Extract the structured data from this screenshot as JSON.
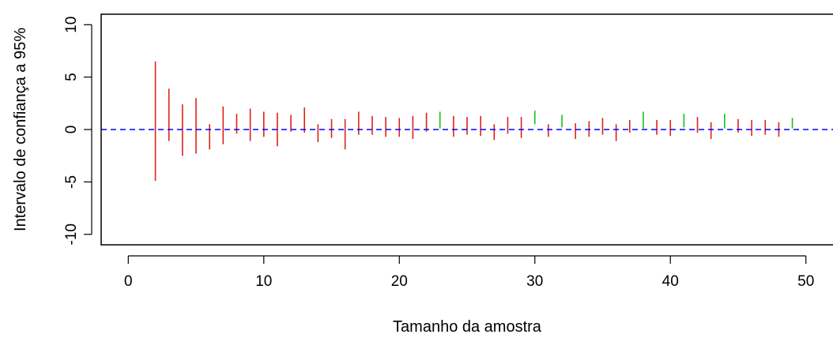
{
  "chart_data": {
    "type": "errorbar",
    "title": "",
    "xlabel": "Tamanho da amostra",
    "ylabel": "Intervalo de confiança a 95%",
    "xlim": [
      -2,
      52
    ],
    "ylim": [
      -11,
      11
    ],
    "xticks": [
      0,
      10,
      20,
      30,
      40,
      50
    ],
    "yticks": [
      -10,
      -5,
      0,
      5,
      10
    ],
    "reference_line": {
      "y": 0,
      "style": "dashed",
      "color": "#0000ff"
    },
    "colors": {
      "contains_zero": "#e0201b",
      "excludes_zero": "#19c019"
    },
    "intervals": [
      {
        "n": 2,
        "lower": -4.9,
        "upper": 6.5
      },
      {
        "n": 3,
        "lower": -1.1,
        "upper": 3.9
      },
      {
        "n": 4,
        "lower": -2.5,
        "upper": 2.4
      },
      {
        "n": 5,
        "lower": -2.3,
        "upper": 3.0
      },
      {
        "n": 6,
        "lower": -1.9,
        "upper": 0.5
      },
      {
        "n": 7,
        "lower": -1.4,
        "upper": 2.2
      },
      {
        "n": 8,
        "lower": -0.4,
        "upper": 1.5
      },
      {
        "n": 9,
        "lower": -1.1,
        "upper": 2.0
      },
      {
        "n": 10,
        "lower": -0.7,
        "upper": 1.7
      },
      {
        "n": 11,
        "lower": -1.6,
        "upper": 1.6
      },
      {
        "n": 12,
        "lower": -0.2,
        "upper": 1.4
      },
      {
        "n": 13,
        "lower": -0.3,
        "upper": 2.1
      },
      {
        "n": 14,
        "lower": -1.2,
        "upper": 0.5
      },
      {
        "n": 15,
        "lower": -0.8,
        "upper": 1.0
      },
      {
        "n": 16,
        "lower": -1.9,
        "upper": 1.0
      },
      {
        "n": 17,
        "lower": -0.5,
        "upper": 1.7
      },
      {
        "n": 18,
        "lower": -0.5,
        "upper": 1.3
      },
      {
        "n": 19,
        "lower": -0.7,
        "upper": 1.2
      },
      {
        "n": 20,
        "lower": -0.7,
        "upper": 1.1
      },
      {
        "n": 21,
        "lower": -0.9,
        "upper": 1.3
      },
      {
        "n": 22,
        "lower": -0.2,
        "upper": 1.6
      },
      {
        "n": 23,
        "lower": 0.1,
        "upper": 1.7
      },
      {
        "n": 24,
        "lower": -0.7,
        "upper": 1.3
      },
      {
        "n": 25,
        "lower": -0.5,
        "upper": 1.2
      },
      {
        "n": 26,
        "lower": -0.6,
        "upper": 1.3
      },
      {
        "n": 27,
        "lower": -1.0,
        "upper": 0.5
      },
      {
        "n": 28,
        "lower": -0.4,
        "upper": 1.2
      },
      {
        "n": 29,
        "lower": -0.8,
        "upper": 1.2
      },
      {
        "n": 30,
        "lower": 0.5,
        "upper": 1.8
      },
      {
        "n": 31,
        "lower": -0.7,
        "upper": 0.5
      },
      {
        "n": 32,
        "lower": 0.2,
        "upper": 1.4
      },
      {
        "n": 33,
        "lower": -0.9,
        "upper": 0.6
      },
      {
        "n": 34,
        "lower": -0.7,
        "upper": 0.8
      },
      {
        "n": 35,
        "lower": -0.5,
        "upper": 1.1
      },
      {
        "n": 36,
        "lower": -1.1,
        "upper": 0.5
      },
      {
        "n": 37,
        "lower": -0.3,
        "upper": 0.9
      },
      {
        "n": 38,
        "lower": 0.1,
        "upper": 1.7
      },
      {
        "n": 39,
        "lower": -0.5,
        "upper": 0.9
      },
      {
        "n": 40,
        "lower": -0.6,
        "upper": 0.9
      },
      {
        "n": 41,
        "lower": 0.2,
        "upper": 1.5
      },
      {
        "n": 42,
        "lower": -0.3,
        "upper": 1.2
      },
      {
        "n": 43,
        "lower": -0.9,
        "upper": 0.7
      },
      {
        "n": 44,
        "lower": 0.1,
        "upper": 1.5
      },
      {
        "n": 45,
        "lower": -0.3,
        "upper": 1.0
      },
      {
        "n": 46,
        "lower": -0.6,
        "upper": 0.9
      },
      {
        "n": 47,
        "lower": -0.5,
        "upper": 0.9
      },
      {
        "n": 48,
        "lower": -0.7,
        "upper": 0.7
      },
      {
        "n": 49,
        "lower": 0.1,
        "upper": 1.1
      }
    ]
  }
}
